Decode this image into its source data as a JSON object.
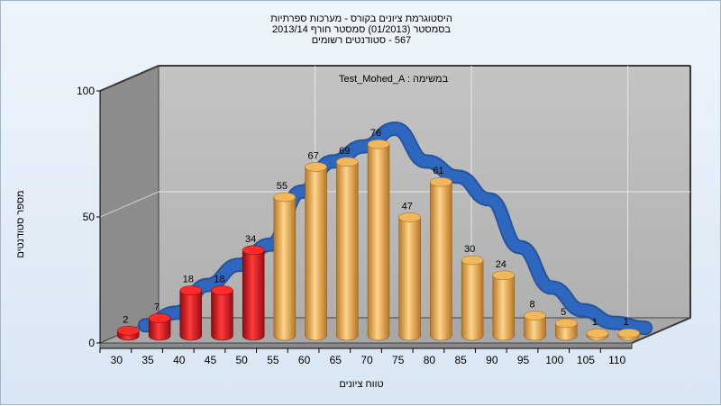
{
  "chart_data": {
    "type": "bar",
    "title_lines": [
      "היסטוגרמת ציונים בקורס - מערכות ספרתיות",
      "בסמסטר  (01/2013)  סמסטר חורף 2013/14",
      "567 - סטודנטים רשומים"
    ],
    "subtitle": "Test_Mohed_A : במשימה",
    "xlabel": "טווח ציונים",
    "ylabel": "מספר סטודנטים",
    "ylim": [
      0,
      100
    ],
    "yticks": [
      0,
      50,
      100
    ],
    "categories": [
      "30",
      "35",
      "40",
      "45",
      "50",
      "55",
      "60",
      "65",
      "70",
      "75",
      "80",
      "85",
      "90",
      "95",
      "100",
      "105",
      "110"
    ],
    "values": [
      2,
      7,
      18,
      18,
      34,
      55,
      67,
      69,
      76,
      47,
      61,
      30,
      24,
      8,
      5,
      1,
      1
    ],
    "fail_count": 5,
    "trend_line_values": [
      2,
      7,
      18,
      26,
      34,
      55,
      67,
      73,
      80,
      67,
      61,
      52,
      33,
      17,
      8,
      3,
      1
    ],
    "grid": true,
    "colors": {
      "fail": "#d8141b",
      "pass": "#e4a44a",
      "trend": "#2e67bf",
      "wall": "#b9b9b9",
      "side_wall": "#8c8c8c",
      "floor": "#a8a8a8"
    }
  }
}
